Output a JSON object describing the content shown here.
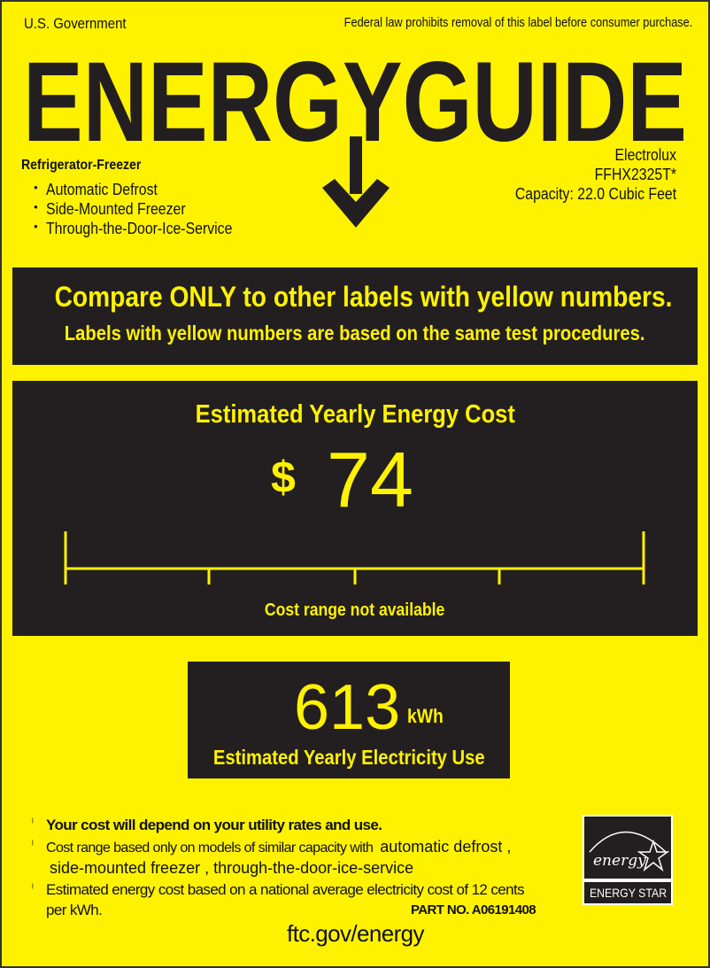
{
  "header": {
    "government": "U.S. Government",
    "notice": "Federal law prohibits removal of this label before consumer purchase."
  },
  "logo": {
    "text": "ENERGYGUIDE"
  },
  "product": {
    "type": "Refrigerator-Freezer",
    "features": [
      "Automatic Defrost",
      "Side-Mounted Freezer",
      "Through-the-Door-Ice-Service"
    ]
  },
  "model": {
    "brand": "Electrolux",
    "model_number": "FFHX2325T*",
    "capacity": "Capacity: 22.0 Cubic Feet"
  },
  "compare": {
    "line1": "Compare ONLY to other labels with yellow numbers.",
    "line2": "Labels with yellow numbers are based on the same test procedures."
  },
  "cost": {
    "title": "Estimated Yearly Energy Cost",
    "currency": "$",
    "value": "74",
    "range_note": "Cost range not available"
  },
  "electricity": {
    "value": "613",
    "unit": "kWh",
    "label": "Estimated Yearly Electricity Use"
  },
  "footer": {
    "note1": "Your cost will depend on your utility rates and use.",
    "note2a": "Cost range based only on models of similar capacity with",
    "note2b": "automatic defrost ,",
    "note2c": "side-mounted freezer , through-the-door-ice-service",
    "note3a": "Estimated energy cost based on a national average electricity cost of 12 cents",
    "note3b": "per kWh.",
    "part_no": "PART NO. A06191408",
    "url": "ftc.gov/energy",
    "energy_star": "ENERGY STAR",
    "energy_star_script": "energy"
  },
  "colors": {
    "yellow": "#fff200",
    "black": "#231f20"
  }
}
